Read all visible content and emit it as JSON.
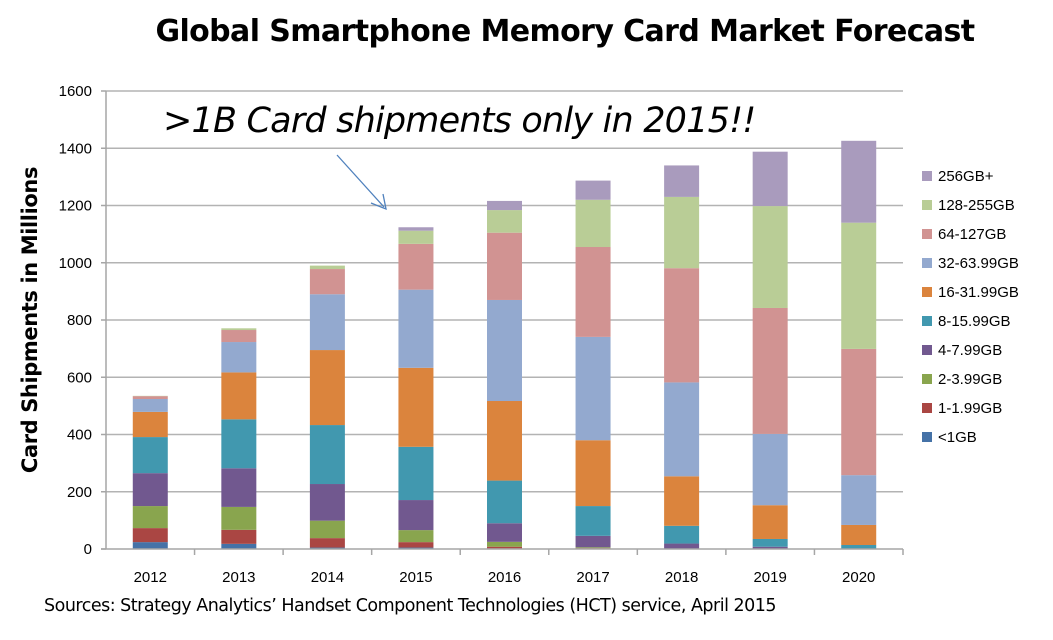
{
  "chart_data": {
    "type": "bar",
    "stacked": true,
    "title": "Global Smartphone Memory Card Market Forecast",
    "xlabel": "",
    "ylabel": "Card Shipments in Millions",
    "ylim": [
      0,
      1600
    ],
    "yticks": [
      0,
      200,
      400,
      600,
      800,
      1000,
      1200,
      1400,
      1600
    ],
    "grid": true,
    "legend_position": "right",
    "categories": [
      "2012",
      "2013",
      "2014",
      "2015",
      "2016",
      "2017",
      "2018",
      "2019",
      "2020"
    ],
    "series": [
      {
        "name": "<1GB",
        "color": "#4572a7",
        "values": [
          24,
          18,
          5,
          5,
          2,
          1,
          0,
          0,
          0
        ]
      },
      {
        "name": "1-1.99GB",
        "color": "#aa4643",
        "values": [
          49,
          49,
          33,
          19,
          6,
          2,
          0,
          0,
          0
        ]
      },
      {
        "name": "2-3.99GB",
        "color": "#89a54e",
        "values": [
          77,
          80,
          61,
          42,
          17,
          3,
          1,
          0,
          0
        ]
      },
      {
        "name": "4-7.99GB",
        "color": "#71588f",
        "values": [
          115,
          135,
          128,
          105,
          65,
          40,
          18,
          8,
          0
        ]
      },
      {
        "name": "8-15.99GB",
        "color": "#4198af",
        "values": [
          126,
          171,
          206,
          186,
          149,
          104,
          62,
          27,
          14
        ]
      },
      {
        "name": "16-31.99GB",
        "color": "#db843d",
        "values": [
          88,
          164,
          262,
          276,
          278,
          230,
          173,
          118,
          70
        ]
      },
      {
        "name": "32-63.99GB",
        "color": "#93a9cf",
        "values": [
          45,
          106,
          195,
          273,
          353,
          361,
          328,
          249,
          174
        ]
      },
      {
        "name": "64-127GB",
        "color": "#d19392",
        "values": [
          10,
          42,
          88,
          160,
          235,
          314,
          399,
          440,
          441
        ]
      },
      {
        "name": "128-255GB",
        "color": "#b9cd96",
        "values": [
          1,
          6,
          12,
          46,
          79,
          165,
          249,
          356,
          441
        ]
      },
      {
        "name": "256GB+",
        "color": "#a99bbd",
        "values": [
          0,
          0,
          0,
          12,
          32,
          67,
          110,
          190,
          286
        ]
      }
    ],
    "annotations": [
      {
        "text": ">1B Card shipments only in 2015!!",
        "points_to": "2015"
      }
    ]
  },
  "source_note": "Sources: Strategy Analytics’ Handset Component Technologies (HCT) service, April 2015",
  "colors": {
    "gridline": "#b3b3b3",
    "axis": "#a6a6a6",
    "arrow": "#4f81bd"
  }
}
